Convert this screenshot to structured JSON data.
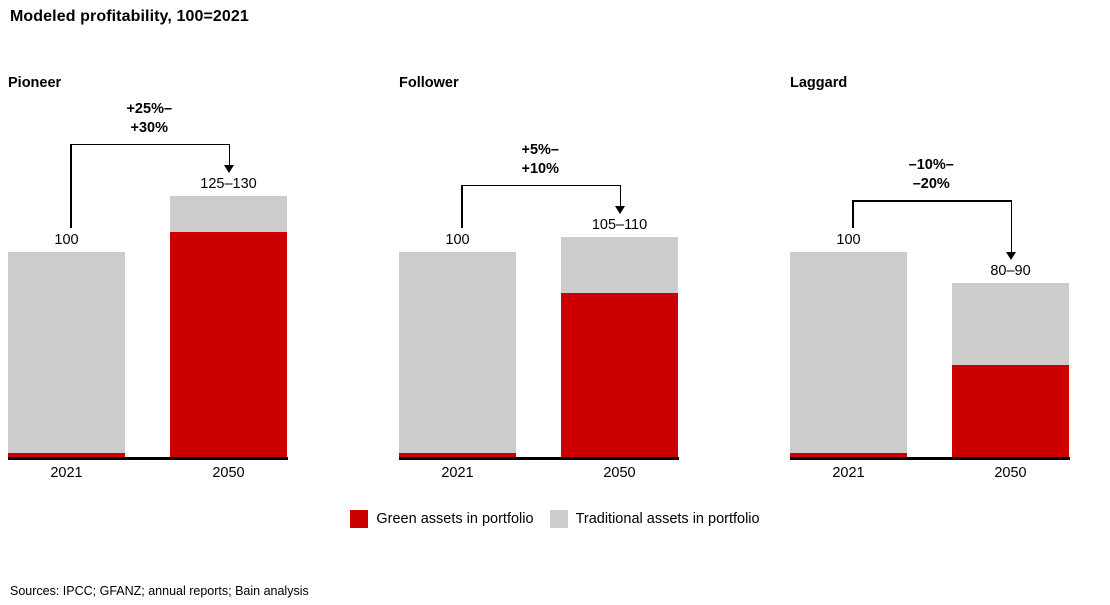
{
  "title": "Modeled profitability, 100=2021",
  "colors": {
    "green_assets": "#cc0000",
    "traditional_assets": "#cccccc",
    "axis": "#000000",
    "arrow": "#000000"
  },
  "legend": {
    "items": [
      {
        "label": "Green assets in portfolio",
        "color": "#cc0000"
      },
      {
        "label": "Traditional assets in portfolio",
        "color": "#cccccc"
      }
    ]
  },
  "sources": "Sources: IPCC; GFANZ; annual reports; Bain analysis",
  "chart_data": [
    {
      "type": "bar",
      "title": "Pioneer",
      "stacked": true,
      "categories": [
        "2021",
        "2050"
      ],
      "series": [
        {
          "name": "Green assets in portfolio",
          "values": [
            2,
            110
          ]
        },
        {
          "name": "Traditional assets in portfolio",
          "values": [
            98,
            17.5
          ]
        }
      ],
      "totals": [
        100,
        127.5
      ],
      "bar_labels": [
        "100",
        "125–130"
      ],
      "change_label": "+25%–\n+30%",
      "ylim": [
        0,
        135
      ]
    },
    {
      "type": "bar",
      "title": "Follower",
      "stacked": true,
      "categories": [
        "2021",
        "2050"
      ],
      "series": [
        {
          "name": "Green assets in portfolio",
          "values": [
            2,
            80
          ]
        },
        {
          "name": "Traditional assets in portfolio",
          "values": [
            98,
            27.5
          ]
        }
      ],
      "totals": [
        100,
        107.5
      ],
      "bar_labels": [
        "100",
        "105–110"
      ],
      "change_label": "+5%–\n+10%",
      "ylim": [
        0,
        135
      ]
    },
    {
      "type": "bar",
      "title": "Laggard",
      "stacked": true,
      "categories": [
        "2021",
        "2050"
      ],
      "series": [
        {
          "name": "Green assets in portfolio",
          "values": [
            2,
            45
          ]
        },
        {
          "name": "Traditional assets in portfolio",
          "values": [
            98,
            40
          ]
        }
      ],
      "totals": [
        100,
        85
      ],
      "bar_labels": [
        "100",
        "80–90"
      ],
      "change_label": "–10%–\n–20%",
      "ylim": [
        0,
        135
      ]
    }
  ]
}
